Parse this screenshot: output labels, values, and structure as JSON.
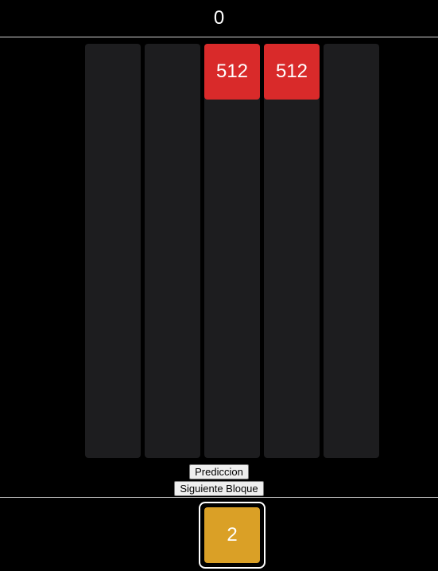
{
  "score": "0",
  "columns": [
    {
      "tiles": []
    },
    {
      "tiles": []
    },
    {
      "tiles": [
        {
          "value": "512",
          "color": "#d92a2a"
        }
      ]
    },
    {
      "tiles": [
        {
          "value": "512",
          "color": "#d92a2a"
        }
      ]
    },
    {
      "tiles": []
    }
  ],
  "buttons": {
    "prediction_label": "Prediccion",
    "next_block_label": "Siguiente Bloque"
  },
  "next_block": {
    "value": "2",
    "color": "#daa026"
  },
  "colors": {
    "background": "#000000",
    "column": "#1d1d1f",
    "tile_512": "#d92a2a",
    "tile_2": "#daa026"
  }
}
